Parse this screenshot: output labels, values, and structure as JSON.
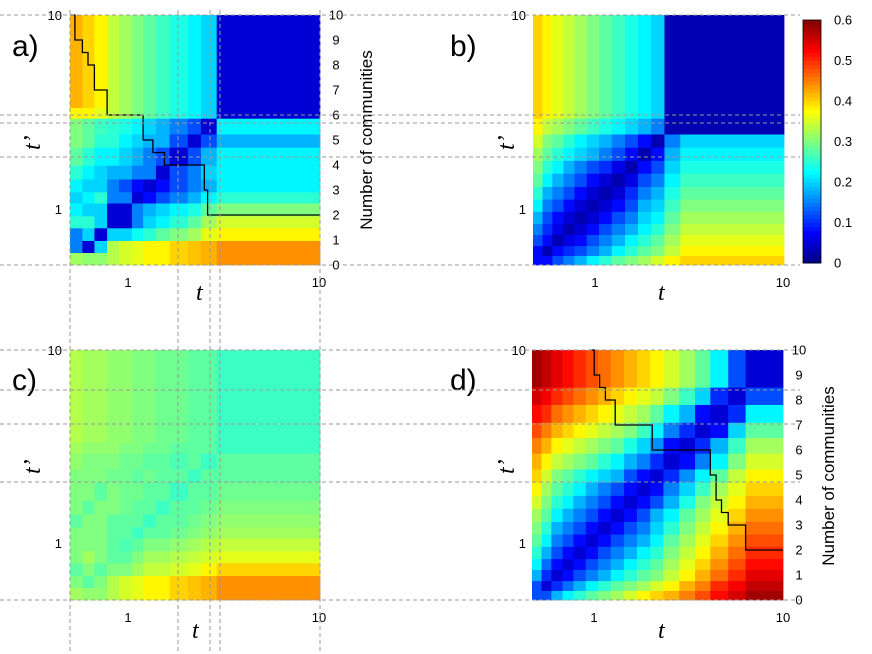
{
  "chart_data": {
    "type": "heatmap",
    "colorbar": {
      "min": 0,
      "max": 0.6,
      "tick_labels": [
        "0",
        "0.1",
        "0.2",
        "0.3",
        "0.4",
        "0.5",
        "0.6"
      ],
      "colormap": "jet"
    },
    "x_axis": {
      "label": "t",
      "scale": "log",
      "range": [
        0.5,
        10
      ],
      "tick_labels": [
        "1",
        "10"
      ]
    },
    "y_axis": {
      "label": "t’",
      "scale": "log",
      "range": [
        0.5,
        10
      ],
      "tick_labels": [
        "1",
        "10"
      ]
    },
    "right_axis": {
      "title": "Number of communities",
      "range": [
        0,
        10
      ],
      "tick_labels": [
        "0",
        "1",
        "2",
        "3",
        "4",
        "5",
        "6",
        "7",
        "8",
        "9",
        "10"
      ]
    },
    "panels": [
      {
        "label": "a)",
        "x_breaks": [
          0.5,
          0.58,
          0.67,
          0.78,
          0.9,
          1.05,
          1.2,
          1.4,
          1.65,
          2.05,
          2.4,
          2.9,
          10
        ],
        "y_breaks": [
          0.5,
          0.58,
          0.67,
          0.78,
          0.9,
          1.05,
          1.2,
          1.4,
          1.65,
          2.05,
          2.4,
          2.9,
          3.3,
          10
        ],
        "matrix": [
          [
            0.32,
            0.31,
            0.31,
            0.33,
            0.35,
            0.36,
            0.38,
            0.38,
            0.4,
            0.41,
            0.42,
            0.44
          ],
          [
            0.15,
            0.05,
            0.2,
            0.33,
            0.35,
            0.36,
            0.38,
            0.38,
            0.4,
            0.41,
            0.42,
            0.44
          ],
          [
            0.15,
            0.2,
            0.05,
            0.2,
            0.2,
            0.23,
            0.25,
            0.28,
            0.3,
            0.32,
            0.36,
            0.38
          ],
          [
            0.25,
            0.25,
            0.2,
            0.05,
            0.05,
            0.15,
            0.2,
            0.22,
            0.25,
            0.28,
            0.32,
            0.35
          ],
          [
            0.22,
            0.2,
            0.2,
            0.05,
            0.05,
            0.15,
            0.18,
            0.2,
            0.22,
            0.24,
            0.28,
            0.3
          ],
          [
            0.2,
            0.22,
            0.25,
            0.15,
            0.15,
            0.05,
            0.08,
            0.12,
            0.15,
            0.18,
            0.22,
            0.25
          ],
          [
            0.22,
            0.2,
            0.2,
            0.15,
            0.12,
            0.08,
            0.05,
            0.08,
            0.12,
            0.15,
            0.18,
            0.22
          ],
          [
            0.25,
            0.22,
            0.2,
            0.18,
            0.18,
            0.15,
            0.15,
            0.05,
            0.12,
            0.15,
            0.2,
            0.22
          ],
          [
            0.28,
            0.25,
            0.22,
            0.22,
            0.2,
            0.18,
            0.15,
            0.12,
            0.05,
            0.12,
            0.18,
            0.22
          ],
          [
            0.3,
            0.28,
            0.25,
            0.25,
            0.22,
            0.2,
            0.18,
            0.18,
            0.12,
            0.05,
            0.12,
            0.18
          ],
          [
            0.3,
            0.28,
            0.26,
            0.25,
            0.24,
            0.22,
            0.2,
            0.18,
            0.15,
            0.12,
            0.05,
            0.22
          ],
          [
            0.38,
            0.38,
            0.36,
            0.34,
            0.32,
            0.3,
            0.28,
            0.26,
            0.24,
            0.22,
            0.2,
            0.05
          ],
          [
            0.42,
            0.4,
            0.38,
            0.34,
            0.32,
            0.3,
            0.28,
            0.26,
            0.24,
            0.22,
            0.2,
            0.05
          ]
        ],
        "community_steps": {
          "t": [
            0.5,
            0.53,
            0.58,
            0.62,
            0.67,
            0.78,
            1.05,
            1.2,
            1.35,
            1.55,
            2.3,
            2.5,
            2.6,
            10
          ],
          "n": [
            10,
            9,
            8.5,
            8,
            7,
            6,
            6,
            5,
            4.5,
            4,
            4,
            3,
            2,
            2
          ]
        }
      },
      {
        "label": "b)",
        "x_breaks": [
          0.5,
          0.56,
          0.63,
          0.72,
          0.82,
          0.95,
          1.1,
          1.28,
          1.5,
          1.75,
          2.05,
          2.4,
          2.9,
          10
        ],
        "y_breaks": [
          0.5,
          0.56,
          0.63,
          0.72,
          0.82,
          0.95,
          1.1,
          1.28,
          1.5,
          1.75,
          2.05,
          2.4,
          2.9,
          10
        ],
        "matrix": [
          [
            0.08,
            0.08,
            0.12,
            0.15,
            0.18,
            0.22,
            0.25,
            0.28,
            0.3,
            0.32,
            0.35,
            0.38,
            0.4
          ],
          [
            0.08,
            0.03,
            0.08,
            0.1,
            0.12,
            0.15,
            0.18,
            0.22,
            0.25,
            0.28,
            0.3,
            0.34,
            0.38
          ],
          [
            0.12,
            0.08,
            0.03,
            0.06,
            0.08,
            0.12,
            0.15,
            0.18,
            0.22,
            0.25,
            0.28,
            0.32,
            0.36
          ],
          [
            0.15,
            0.1,
            0.06,
            0.03,
            0.05,
            0.08,
            0.12,
            0.15,
            0.18,
            0.22,
            0.25,
            0.3,
            0.34
          ],
          [
            0.18,
            0.12,
            0.08,
            0.05,
            0.03,
            0.05,
            0.08,
            0.12,
            0.15,
            0.2,
            0.22,
            0.28,
            0.32
          ],
          [
            0.22,
            0.15,
            0.12,
            0.08,
            0.05,
            0.03,
            0.05,
            0.08,
            0.12,
            0.18,
            0.2,
            0.26,
            0.3
          ],
          [
            0.25,
            0.18,
            0.15,
            0.12,
            0.08,
            0.05,
            0.03,
            0.05,
            0.1,
            0.15,
            0.18,
            0.24,
            0.28
          ],
          [
            0.28,
            0.22,
            0.18,
            0.15,
            0.12,
            0.08,
            0.05,
            0.03,
            0.06,
            0.12,
            0.15,
            0.22,
            0.26
          ],
          [
            0.3,
            0.25,
            0.22,
            0.18,
            0.15,
            0.12,
            0.1,
            0.06,
            0.03,
            0.08,
            0.12,
            0.2,
            0.24
          ],
          [
            0.32,
            0.28,
            0.25,
            0.22,
            0.2,
            0.18,
            0.15,
            0.12,
            0.08,
            0.03,
            0.08,
            0.18,
            0.22
          ],
          [
            0.35,
            0.3,
            0.28,
            0.25,
            0.22,
            0.2,
            0.18,
            0.15,
            0.12,
            0.08,
            0.03,
            0.15,
            0.2
          ],
          [
            0.38,
            0.34,
            0.32,
            0.3,
            0.28,
            0.26,
            0.24,
            0.22,
            0.2,
            0.18,
            0.15,
            0.03,
            0.03
          ],
          [
            0.4,
            0.38,
            0.36,
            0.34,
            0.32,
            0.3,
            0.28,
            0.26,
            0.24,
            0.22,
            0.2,
            0.03,
            0.03
          ]
        ]
      },
      {
        "label": "c)",
        "x_breaks": [
          0.5,
          0.58,
          0.67,
          0.78,
          0.9,
          1.05,
          1.2,
          1.4,
          1.65,
          2.05,
          2.4,
          2.9,
          10
        ],
        "y_breaks": [
          0.5,
          0.58,
          0.67,
          0.78,
          0.9,
          1.05,
          1.2,
          1.4,
          1.65,
          2.05,
          2.4,
          2.9,
          3.3,
          10
        ],
        "matrix": [
          [
            0.32,
            0.31,
            0.31,
            0.33,
            0.35,
            0.36,
            0.38,
            0.38,
            0.4,
            0.41,
            0.42,
            0.44
          ],
          [
            0.3,
            0.28,
            0.3,
            0.33,
            0.35,
            0.36,
            0.38,
            0.38,
            0.4,
            0.41,
            0.42,
            0.44
          ],
          [
            0.28,
            0.3,
            0.28,
            0.3,
            0.3,
            0.32,
            0.34,
            0.34,
            0.35,
            0.36,
            0.38,
            0.4
          ],
          [
            0.3,
            0.32,
            0.3,
            0.28,
            0.28,
            0.3,
            0.32,
            0.32,
            0.33,
            0.34,
            0.35,
            0.36
          ],
          [
            0.3,
            0.3,
            0.3,
            0.28,
            0.27,
            0.28,
            0.3,
            0.3,
            0.31,
            0.32,
            0.33,
            0.34
          ],
          [
            0.3,
            0.3,
            0.3,
            0.28,
            0.28,
            0.26,
            0.28,
            0.28,
            0.29,
            0.3,
            0.31,
            0.32
          ],
          [
            0.28,
            0.3,
            0.3,
            0.28,
            0.28,
            0.28,
            0.26,
            0.28,
            0.28,
            0.29,
            0.3,
            0.31
          ],
          [
            0.3,
            0.28,
            0.3,
            0.3,
            0.29,
            0.28,
            0.28,
            0.26,
            0.28,
            0.28,
            0.29,
            0.3
          ],
          [
            0.3,
            0.3,
            0.28,
            0.3,
            0.29,
            0.29,
            0.28,
            0.28,
            0.26,
            0.28,
            0.28,
            0.29
          ],
          [
            0.3,
            0.3,
            0.3,
            0.29,
            0.29,
            0.28,
            0.29,
            0.28,
            0.28,
            0.26,
            0.28,
            0.28
          ],
          [
            0.31,
            0.3,
            0.3,
            0.3,
            0.29,
            0.29,
            0.28,
            0.28,
            0.27,
            0.28,
            0.26,
            0.28
          ],
          [
            0.32,
            0.31,
            0.31,
            0.31,
            0.3,
            0.3,
            0.29,
            0.29,
            0.28,
            0.28,
            0.28,
            0.26
          ],
          [
            0.33,
            0.32,
            0.32,
            0.31,
            0.31,
            0.3,
            0.3,
            0.29,
            0.29,
            0.28,
            0.28,
            0.26
          ]
        ]
      },
      {
        "label": "d)",
        "x_breaks": [
          0.5,
          0.56,
          0.63,
          0.72,
          0.82,
          0.95,
          1.1,
          1.28,
          1.5,
          1.75,
          2.05,
          2.4,
          2.9,
          3.5,
          4.2,
          5.2,
          6.4,
          10
        ],
        "y_breaks": [
          0.5,
          0.56,
          0.63,
          0.72,
          0.82,
          0.95,
          1.1,
          1.28,
          1.5,
          1.75,
          2.05,
          2.4,
          2.9,
          3.5,
          4.2,
          5.2,
          6.4,
          10
        ],
        "matrix": [
          [
            0.12,
            0.12,
            0.18,
            0.22,
            0.25,
            0.28,
            0.3,
            0.32,
            0.35,
            0.38,
            0.4,
            0.42,
            0.45,
            0.48,
            0.52,
            0.55,
            0.58
          ],
          [
            0.12,
            0.05,
            0.1,
            0.14,
            0.18,
            0.22,
            0.25,
            0.28,
            0.3,
            0.32,
            0.35,
            0.38,
            0.42,
            0.45,
            0.5,
            0.53,
            0.56
          ],
          [
            0.18,
            0.1,
            0.05,
            0.08,
            0.12,
            0.15,
            0.18,
            0.22,
            0.25,
            0.28,
            0.3,
            0.34,
            0.38,
            0.42,
            0.46,
            0.5,
            0.54
          ],
          [
            0.22,
            0.14,
            0.08,
            0.05,
            0.08,
            0.12,
            0.15,
            0.18,
            0.22,
            0.25,
            0.28,
            0.32,
            0.36,
            0.4,
            0.44,
            0.48,
            0.52
          ],
          [
            0.25,
            0.18,
            0.12,
            0.08,
            0.05,
            0.08,
            0.12,
            0.15,
            0.18,
            0.22,
            0.25,
            0.3,
            0.34,
            0.38,
            0.42,
            0.46,
            0.5
          ],
          [
            0.28,
            0.22,
            0.15,
            0.12,
            0.08,
            0.05,
            0.08,
            0.12,
            0.15,
            0.18,
            0.22,
            0.28,
            0.32,
            0.36,
            0.4,
            0.44,
            0.48
          ],
          [
            0.3,
            0.25,
            0.18,
            0.15,
            0.12,
            0.08,
            0.05,
            0.08,
            0.12,
            0.15,
            0.2,
            0.25,
            0.3,
            0.34,
            0.38,
            0.42,
            0.46
          ],
          [
            0.32,
            0.28,
            0.22,
            0.18,
            0.15,
            0.12,
            0.08,
            0.05,
            0.08,
            0.12,
            0.18,
            0.22,
            0.28,
            0.32,
            0.36,
            0.4,
            0.44
          ],
          [
            0.35,
            0.3,
            0.25,
            0.22,
            0.18,
            0.15,
            0.12,
            0.08,
            0.05,
            0.08,
            0.12,
            0.18,
            0.24,
            0.3,
            0.34,
            0.38,
            0.42
          ],
          [
            0.38,
            0.32,
            0.28,
            0.25,
            0.22,
            0.18,
            0.15,
            0.12,
            0.08,
            0.05,
            0.08,
            0.15,
            0.2,
            0.26,
            0.32,
            0.36,
            0.4
          ],
          [
            0.4,
            0.35,
            0.3,
            0.28,
            0.25,
            0.22,
            0.2,
            0.18,
            0.12,
            0.08,
            0.05,
            0.1,
            0.16,
            0.22,
            0.28,
            0.34,
            0.38
          ],
          [
            0.42,
            0.38,
            0.34,
            0.32,
            0.3,
            0.28,
            0.25,
            0.22,
            0.18,
            0.15,
            0.1,
            0.05,
            0.08,
            0.15,
            0.22,
            0.3,
            0.35
          ],
          [
            0.45,
            0.42,
            0.38,
            0.36,
            0.34,
            0.32,
            0.3,
            0.28,
            0.24,
            0.2,
            0.16,
            0.08,
            0.05,
            0.1,
            0.18,
            0.26,
            0.32
          ],
          [
            0.48,
            0.45,
            0.42,
            0.4,
            0.38,
            0.36,
            0.34,
            0.32,
            0.3,
            0.26,
            0.22,
            0.15,
            0.1,
            0.05,
            0.08,
            0.2,
            0.28
          ],
          [
            0.52,
            0.5,
            0.46,
            0.44,
            0.42,
            0.4,
            0.38,
            0.36,
            0.34,
            0.32,
            0.28,
            0.22,
            0.18,
            0.08,
            0.05,
            0.1,
            0.22
          ],
          [
            0.55,
            0.53,
            0.5,
            0.48,
            0.46,
            0.44,
            0.42,
            0.4,
            0.38,
            0.36,
            0.34,
            0.3,
            0.26,
            0.2,
            0.1,
            0.05,
            0.12
          ],
          [
            0.58,
            0.56,
            0.54,
            0.52,
            0.5,
            0.48,
            0.46,
            0.44,
            0.42,
            0.4,
            0.38,
            0.35,
            0.32,
            0.28,
            0.22,
            0.12,
            0.05
          ]
        ],
        "community_steps": {
          "t": [
            1,
            1.05,
            1.12,
            1.2,
            1.35,
            2.1,
            3.8,
            4.2,
            4.5,
            4.8,
            5.2,
            6.4,
            10
          ],
          "n": [
            10,
            9,
            8.5,
            8,
            7,
            6,
            6,
            5,
            4,
            3.5,
            3,
            2,
            2
          ]
        }
      }
    ]
  }
}
